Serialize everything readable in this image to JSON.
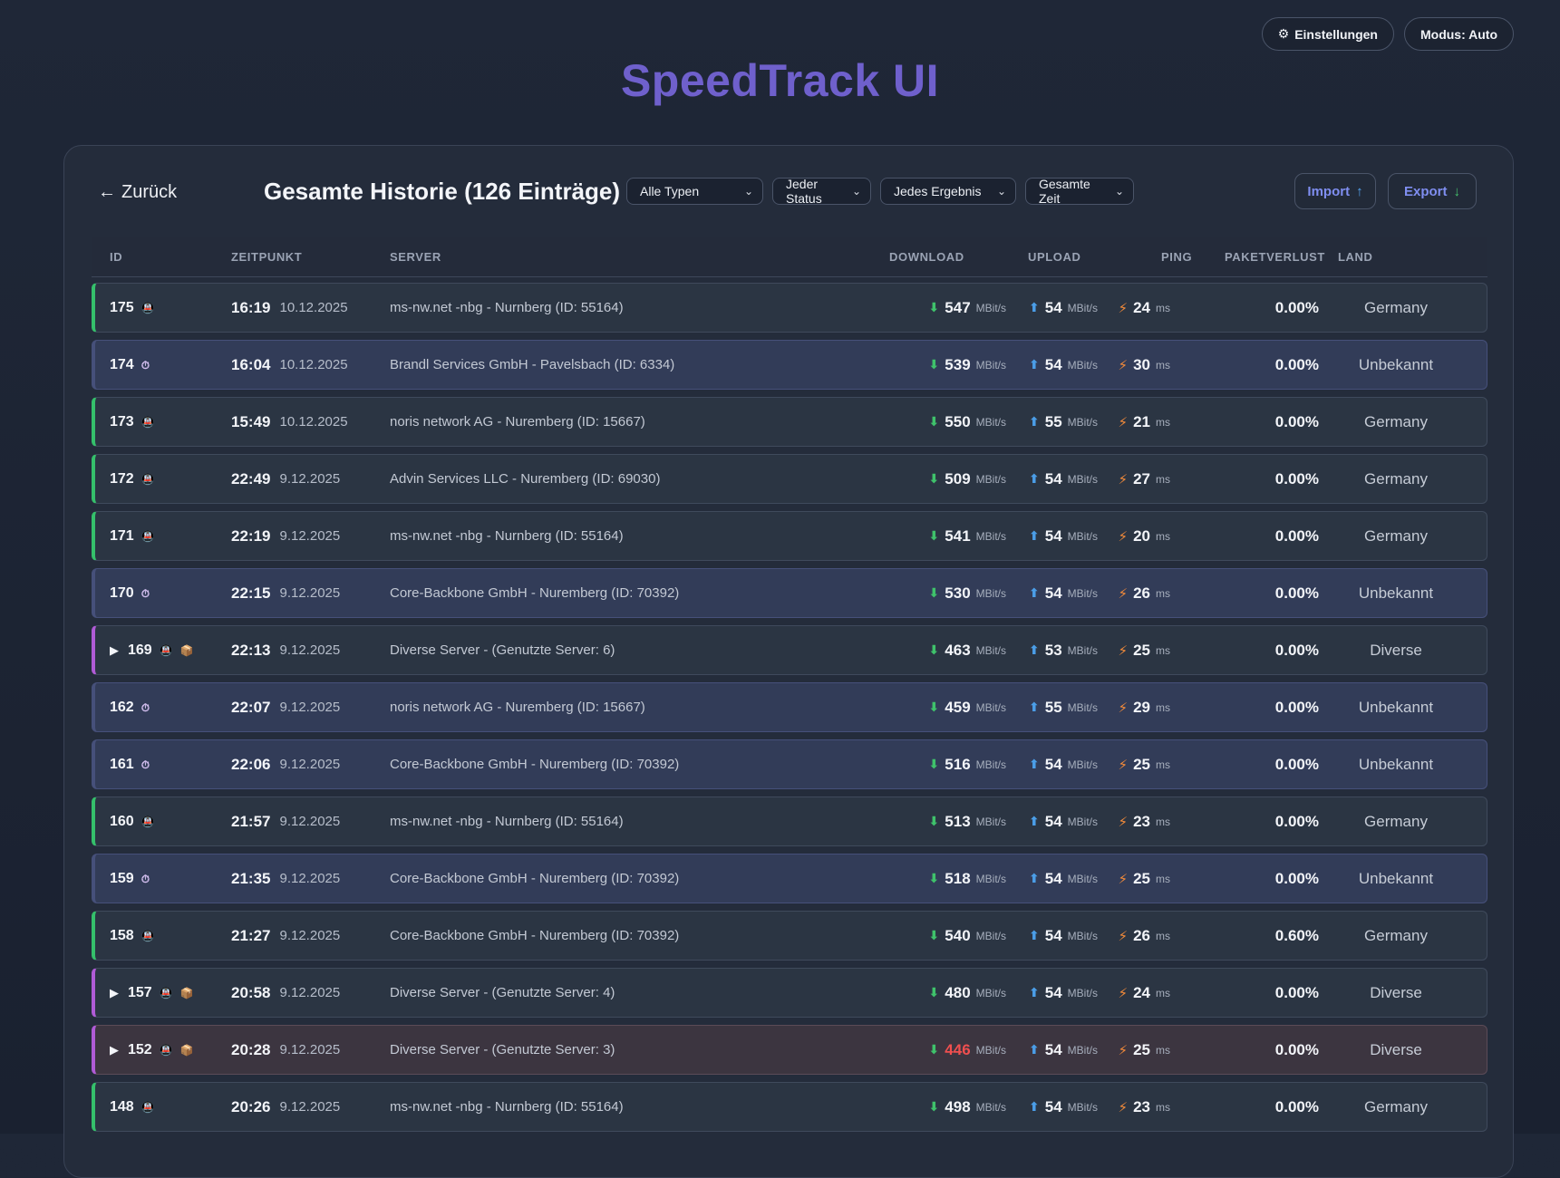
{
  "app": {
    "title": "SpeedTrack UI",
    "settings_label": "Einstellungen",
    "settings_icon": "⚙",
    "mode_label": "Modus: Auto"
  },
  "panel": {
    "back_label": "Zurück",
    "back_arrow": "←",
    "title": "Gesamte Historie (126 Einträge)",
    "filters": [
      "Alle Typen",
      "Jeder Status",
      "Jedes Ergebnis",
      "Gesamte Zeit"
    ],
    "import_label": "Import",
    "import_icon": "↑",
    "export_label": "Export",
    "export_icon": "↓"
  },
  "columns": {
    "id": "ID",
    "time": "ZEITPUNKT",
    "server": "SERVER",
    "download": "DOWNLOAD",
    "upload": "UPLOAD",
    "ping": "PING",
    "loss": "PAKETVERLUST",
    "land": "LAND"
  },
  "units": {
    "speed": "MBit/s",
    "ping": "ms"
  },
  "colors": {
    "accent_title": "#6f60cc",
    "row_type_auto": "#35c06b",
    "row_type_manual": "#6a6fe0",
    "row_type_multi": "#b05bd6",
    "download_arrow": "#3fc26b",
    "upload_arrow": "#4b9ee8",
    "ping_bolt": "#f48b3a",
    "bad_value": "#ef4f4f"
  },
  "rows": [
    {
      "id": "175",
      "kind": "a",
      "badges": [
        "train"
      ],
      "expand": false,
      "time": "16:19",
      "date": "10.12.2025",
      "server": "ms-nw.net -nbg - Nurnberg (ID: 55164)",
      "dl": "547",
      "ul": "54",
      "ping": "24",
      "loss": "0.00%",
      "land": "Germany"
    },
    {
      "id": "174",
      "kind": "b",
      "badges": [
        "clock"
      ],
      "expand": false,
      "time": "16:04",
      "date": "10.12.2025",
      "server": "Brandl Services GmbH - Pavelsbach (ID: 6334)",
      "dl": "539",
      "ul": "54",
      "ping": "30",
      "loss": "0.00%",
      "land": "Unbekannt"
    },
    {
      "id": "173",
      "kind": "a",
      "badges": [
        "train"
      ],
      "expand": false,
      "time": "15:49",
      "date": "10.12.2025",
      "server": "noris network AG - Nuremberg (ID: 15667)",
      "dl": "550",
      "ul": "55",
      "ping": "21",
      "loss": "0.00%",
      "land": "Germany"
    },
    {
      "id": "172",
      "kind": "a",
      "badges": [
        "train"
      ],
      "expand": false,
      "time": "22:49",
      "date": "9.12.2025",
      "server": "Advin Services LLC - Nuremberg (ID: 69030)",
      "dl": "509",
      "ul": "54",
      "ping": "27",
      "loss": "0.00%",
      "land": "Germany"
    },
    {
      "id": "171",
      "kind": "a",
      "badges": [
        "train"
      ],
      "expand": false,
      "time": "22:19",
      "date": "9.12.2025",
      "server": "ms-nw.net -nbg - Nurnberg (ID: 55164)",
      "dl": "541",
      "ul": "54",
      "ping": "20",
      "loss": "0.00%",
      "land": "Germany"
    },
    {
      "id": "170",
      "kind": "b",
      "badges": [
        "clock"
      ],
      "expand": false,
      "time": "22:15",
      "date": "9.12.2025",
      "server": "Core-Backbone GmbH - Nuremberg (ID: 70392)",
      "dl": "530",
      "ul": "54",
      "ping": "26",
      "loss": "0.00%",
      "land": "Unbekannt"
    },
    {
      "id": "169",
      "kind": "c",
      "badges": [
        "train",
        "box"
      ],
      "expand": true,
      "time": "22:13",
      "date": "9.12.2025",
      "server": "Diverse Server - (Genutzte Server: 6)",
      "dl": "463",
      "ul": "53",
      "ping": "25",
      "loss": "0.00%",
      "land": "Diverse"
    },
    {
      "id": "162",
      "kind": "b",
      "badges": [
        "clock"
      ],
      "expand": false,
      "time": "22:07",
      "date": "9.12.2025",
      "server": "noris network AG - Nuremberg (ID: 15667)",
      "dl": "459",
      "ul": "55",
      "ping": "29",
      "loss": "0.00%",
      "land": "Unbekannt"
    },
    {
      "id": "161",
      "kind": "b",
      "badges": [
        "clock"
      ],
      "expand": false,
      "time": "22:06",
      "date": "9.12.2025",
      "server": "Core-Backbone GmbH - Nuremberg (ID: 70392)",
      "dl": "516",
      "ul": "54",
      "ping": "25",
      "loss": "0.00%",
      "land": "Unbekannt"
    },
    {
      "id": "160",
      "kind": "a",
      "badges": [
        "train"
      ],
      "expand": false,
      "time": "21:57",
      "date": "9.12.2025",
      "server": "ms-nw.net -nbg - Nurnberg (ID: 55164)",
      "dl": "513",
      "ul": "54",
      "ping": "23",
      "loss": "0.00%",
      "land": "Germany"
    },
    {
      "id": "159",
      "kind": "b",
      "badges": [
        "clock"
      ],
      "expand": false,
      "time": "21:35",
      "date": "9.12.2025",
      "server": "Core-Backbone GmbH - Nuremberg (ID: 70392)",
      "dl": "518",
      "ul": "54",
      "ping": "25",
      "loss": "0.00%",
      "land": "Unbekannt"
    },
    {
      "id": "158",
      "kind": "a",
      "badges": [
        "train"
      ],
      "expand": false,
      "time": "21:27",
      "date": "9.12.2025",
      "server": "Core-Backbone GmbH - Nuremberg (ID: 70392)",
      "dl": "540",
      "ul": "54",
      "ping": "26",
      "loss": "0.60%",
      "land": "Germany"
    },
    {
      "id": "157",
      "kind": "c",
      "badges": [
        "train",
        "box"
      ],
      "expand": true,
      "time": "20:58",
      "date": "9.12.2025",
      "server": "Diverse Server - (Genutzte Server: 4)",
      "dl": "480",
      "ul": "54",
      "ping": "24",
      "loss": "0.00%",
      "land": "Diverse"
    },
    {
      "id": "152",
      "kind": "c",
      "alert": true,
      "badges": [
        "train",
        "box"
      ],
      "expand": true,
      "time": "20:28",
      "date": "9.12.2025",
      "server": "Diverse Server - (Genutzte Server: 3)",
      "dl": "446",
      "dl_bad": true,
      "ul": "54",
      "ping": "25",
      "loss": "0.00%",
      "land": "Diverse"
    },
    {
      "id": "148",
      "kind": "a",
      "badges": [
        "train"
      ],
      "expand": false,
      "time": "20:26",
      "date": "9.12.2025",
      "server": "ms-nw.net -nbg - Nurnberg (ID: 55164)",
      "dl": "498",
      "ul": "54",
      "ping": "23",
      "loss": "0.00%",
      "land": "Germany"
    }
  ]
}
